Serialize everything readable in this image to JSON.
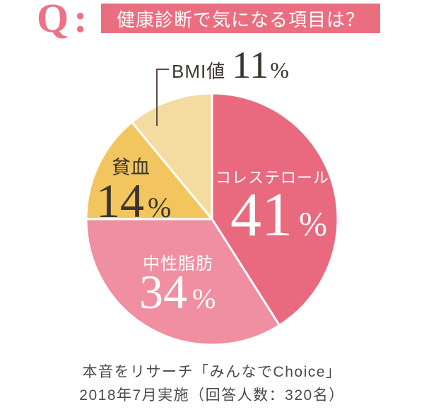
{
  "header": {
    "q_label": "Q:",
    "title": "健康診断で気になる項目は？"
  },
  "chart_data": {
    "type": "pie",
    "title": "健康診断で気になる項目は？",
    "unit": "%",
    "direction": "clockwise",
    "start_angle_deg": 0,
    "legend": "none",
    "slices": [
      {
        "label": "コレステロール",
        "value": 41,
        "color": "#E96A7E",
        "text_color": "#FFFFFF",
        "label_position": "inside"
      },
      {
        "label": "中性脂肪",
        "value": 34,
        "color": "#F08FA1",
        "text_color": "#FFFFFF",
        "label_position": "inside"
      },
      {
        "label": "貧血",
        "value": 14,
        "color": "#F2C55F",
        "text_color": "#3B352F",
        "label_position": "inside"
      },
      {
        "label": "BMI値",
        "value": 11,
        "color": "#F4DB9F",
        "text_color": "#3B352F",
        "label_position": "outside-top-with-leader-line"
      }
    ]
  },
  "footer": {
    "line1": "本音をリサーチ「みんなでChoice」",
    "line2": "2018年7月実施（回答人数：320名）"
  },
  "colors": {
    "background": "#FFFFFF",
    "banner_pink": "#EB6E80",
    "q_pink": "#EE7186",
    "dark_text": "#3B352F",
    "footer_text": "#4B4B4B",
    "leader_line": "#5C4B43",
    "slice_divider": "#FFFFFF"
  }
}
